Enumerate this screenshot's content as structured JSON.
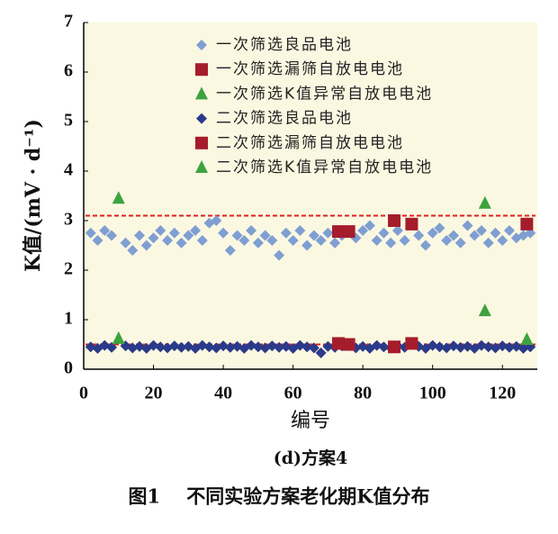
{
  "chart_data": {
    "type": "scatter",
    "y_label": "K值/(mV · d⁻¹)",
    "x_label": "编号",
    "subtitle": "(d)方案4",
    "caption": "图1    不同实验方案老化期K值分布",
    "xlim": [
      0,
      130
    ],
    "ylim": [
      0,
      7
    ],
    "xticks": [
      0,
      20,
      40,
      60,
      80,
      100,
      120
    ],
    "yticks": [
      0,
      1,
      2,
      3,
      4,
      5,
      6,
      7
    ],
    "background": "#fbf8e2",
    "reference_lines": [
      {
        "value": 3.1,
        "color": "#e0201c"
      },
      {
        "value": 0.5,
        "color": "#e0201c"
      }
    ],
    "series": [
      {
        "name": "一次筛选良品电池",
        "color": "#7f9fd2",
        "marker": "diamond",
        "x": [
          2,
          4,
          6,
          8,
          12,
          14,
          16,
          18,
          20,
          22,
          24,
          26,
          28,
          30,
          32,
          34,
          36,
          38,
          40,
          42,
          44,
          46,
          48,
          50,
          52,
          54,
          56,
          58,
          60,
          62,
          64,
          66,
          68,
          70,
          72,
          74,
          78,
          80,
          82,
          84,
          86,
          88,
          90,
          92,
          96,
          98,
          100,
          102,
          104,
          106,
          108,
          110,
          112,
          114,
          116,
          118,
          120,
          122,
          124,
          126,
          128
        ],
        "values": [
          2.75,
          2.6,
          2.8,
          2.7,
          2.55,
          2.4,
          2.7,
          2.5,
          2.65,
          2.8,
          2.6,
          2.75,
          2.55,
          2.7,
          2.8,
          2.6,
          2.95,
          3.0,
          2.75,
          2.4,
          2.7,
          2.6,
          2.8,
          2.55,
          2.7,
          2.6,
          2.3,
          2.75,
          2.6,
          2.8,
          2.5,
          2.7,
          2.6,
          2.75,
          2.55,
          2.7,
          2.65,
          2.8,
          2.9,
          2.6,
          2.75,
          2.55,
          2.8,
          2.6,
          2.7,
          2.5,
          2.75,
          2.85,
          2.6,
          2.7,
          2.55,
          2.9,
          2.7,
          2.8,
          2.55,
          2.75,
          2.6,
          2.8,
          2.65,
          2.7,
          2.75
        ]
      },
      {
        "name": "一次筛选漏筛自放电电池",
        "color": "#a51c2c",
        "marker": "square",
        "x": [
          73,
          76,
          89,
          94,
          127
        ],
        "values": [
          2.78,
          2.78,
          3.0,
          2.93,
          2.93
        ]
      },
      {
        "name": "一次筛选K值异常自放电电池",
        "color": "#3da33f",
        "marker": "triangle",
        "x": [
          10,
          115
        ],
        "values": [
          3.45,
          3.35
        ]
      },
      {
        "name": "二次筛选良品电池",
        "color": "#2a3a8a",
        "marker": "diamond",
        "x": [
          2,
          4,
          6,
          8,
          12,
          14,
          16,
          18,
          20,
          22,
          24,
          26,
          28,
          30,
          32,
          34,
          36,
          38,
          40,
          42,
          44,
          46,
          48,
          50,
          52,
          54,
          56,
          58,
          60,
          62,
          64,
          66,
          68,
          70,
          72,
          74,
          78,
          80,
          82,
          84,
          86,
          88,
          90,
          92,
          96,
          98,
          100,
          102,
          104,
          106,
          108,
          110,
          112,
          114,
          116,
          118,
          120,
          122,
          124,
          126,
          128
        ],
        "values": [
          0.45,
          0.42,
          0.48,
          0.44,
          0.47,
          0.43,
          0.46,
          0.42,
          0.48,
          0.45,
          0.43,
          0.47,
          0.44,
          0.46,
          0.42,
          0.48,
          0.45,
          0.43,
          0.47,
          0.44,
          0.46,
          0.42,
          0.48,
          0.45,
          0.43,
          0.47,
          0.44,
          0.46,
          0.42,
          0.48,
          0.45,
          0.43,
          0.33,
          0.46,
          0.44,
          0.47,
          0.43,
          0.46,
          0.42,
          0.48,
          0.45,
          0.43,
          0.47,
          0.44,
          0.46,
          0.42,
          0.48,
          0.45,
          0.43,
          0.47,
          0.44,
          0.46,
          0.42,
          0.48,
          0.45,
          0.43,
          0.47,
          0.44,
          0.46,
          0.42,
          0.45
        ]
      },
      {
        "name": "二次筛选漏筛自放电电池",
        "color": "#a51c2c",
        "marker": "square",
        "x": [
          73,
          76,
          89,
          94
        ],
        "values": [
          0.52,
          0.5,
          0.45,
          0.52
        ]
      },
      {
        "name": "二次筛选K值异常自放电电池",
        "color": "#3da33f",
        "marker": "triangle",
        "x": [
          10,
          115,
          127
        ],
        "values": [
          0.62,
          1.18,
          0.6
        ]
      }
    ]
  }
}
